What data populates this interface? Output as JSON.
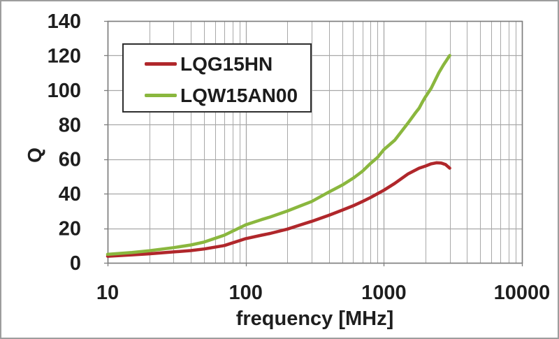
{
  "figure": {
    "background": "#ffffff",
    "outer_border_color": "#9d9d9d"
  },
  "chart_data": {
    "type": "line",
    "title": "",
    "xlabel": "frequency [MHz]",
    "ylabel": "Q",
    "x_scale": "log",
    "xlim": [
      10,
      10000
    ],
    "ylim": [
      0,
      140
    ],
    "x_ticks": [
      10,
      100,
      1000,
      10000
    ],
    "y_ticks": [
      0,
      20,
      40,
      60,
      80,
      100,
      120,
      140
    ],
    "grid": true,
    "grid_minor_log": true,
    "legend_position": "top-left-inside",
    "colors": {
      "grid": "#a8a8a8",
      "frame": "#7d7d7d",
      "text": "#1e1e1e",
      "legend_border": "#2e2e2e"
    },
    "series": [
      {
        "name": "LQG15HN",
        "color": "#b0272b",
        "points": [
          [
            10,
            3.8
          ],
          [
            15,
            4.6
          ],
          [
            20,
            5.2
          ],
          [
            30,
            6.3
          ],
          [
            40,
            7.1
          ],
          [
            50,
            8.0
          ],
          [
            70,
            10.0
          ],
          [
            100,
            14.0
          ],
          [
            130,
            16.0
          ],
          [
            150,
            17.0
          ],
          [
            200,
            19.5
          ],
          [
            250,
            22.0
          ],
          [
            300,
            24.0
          ],
          [
            400,
            27.5
          ],
          [
            500,
            30.5
          ],
          [
            600,
            33.0
          ],
          [
            700,
            35.5
          ],
          [
            800,
            37.8
          ],
          [
            900,
            40.0
          ],
          [
            1000,
            42.0
          ],
          [
            1200,
            46.0
          ],
          [
            1500,
            51.5
          ],
          [
            1800,
            54.8
          ],
          [
            2000,
            56.0
          ],
          [
            2200,
            57.3
          ],
          [
            2400,
            57.9
          ],
          [
            2600,
            57.8
          ],
          [
            2800,
            56.9
          ],
          [
            3000,
            54.8
          ]
        ]
      },
      {
        "name": "LQW15AN00",
        "color": "#8ab73e",
        "points": [
          [
            10,
            4.9
          ],
          [
            15,
            6.0
          ],
          [
            20,
            7.0
          ],
          [
            30,
            8.8
          ],
          [
            40,
            10.3
          ],
          [
            50,
            12.0
          ],
          [
            70,
            16.0
          ],
          [
            100,
            22.0
          ],
          [
            130,
            25.0
          ],
          [
            150,
            26.5
          ],
          [
            200,
            30.0
          ],
          [
            250,
            33.0
          ],
          [
            300,
            35.5
          ],
          [
            400,
            41.0
          ],
          [
            500,
            45.0
          ],
          [
            600,
            49.0
          ],
          [
            700,
            53.0
          ],
          [
            800,
            57.5
          ],
          [
            900,
            61.0
          ],
          [
            1000,
            65.5
          ],
          [
            1200,
            71.0
          ],
          [
            1500,
            81.0
          ],
          [
            1700,
            87.0
          ],
          [
            1800,
            89.5
          ],
          [
            1900,
            93.0
          ],
          [
            2000,
            96.0
          ],
          [
            2200,
            101.0
          ],
          [
            2500,
            110.0
          ],
          [
            2700,
            114.5
          ],
          [
            3000,
            120.0
          ]
        ]
      }
    ]
  }
}
